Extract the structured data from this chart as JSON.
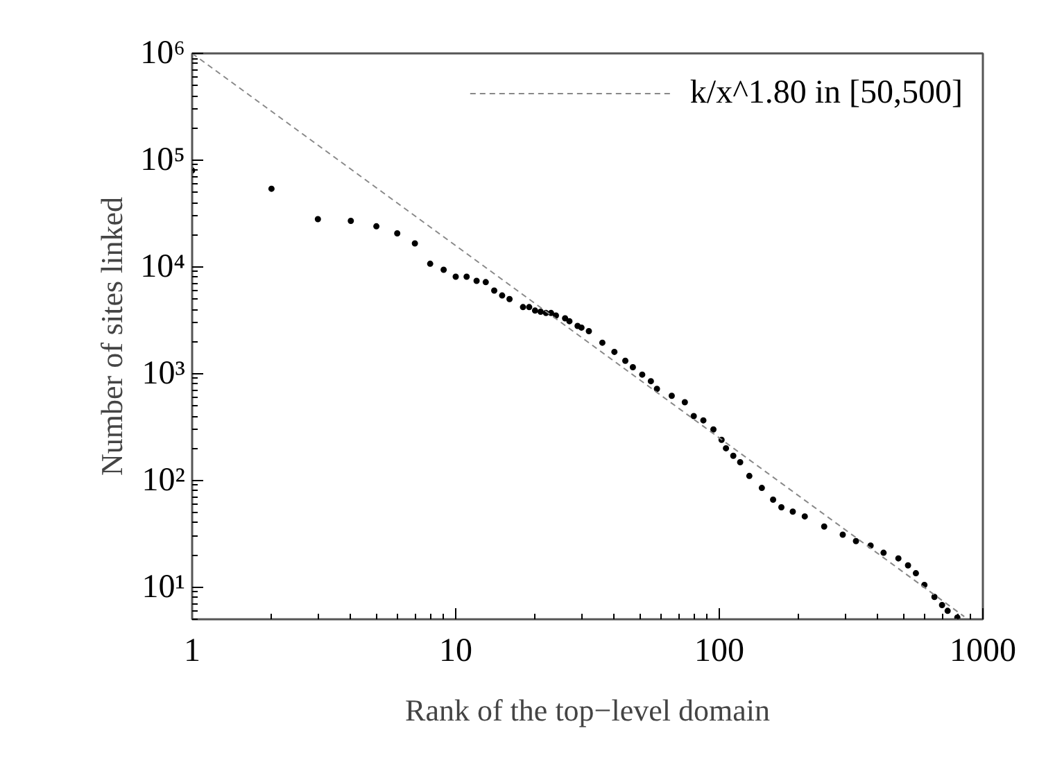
{
  "chart_data": {
    "type": "scatter",
    "xlabel": "Rank of the top−level domain",
    "ylabel": "Number of sites linked",
    "log": "xy",
    "grid": false,
    "legend": "top right",
    "xlim": [
      1,
      1000
    ],
    "ylim": [
      5,
      1000000
    ],
    "xticks": [
      1,
      10,
      100,
      1000
    ],
    "yticks": [
      {
        "value": 10,
        "label": "10¹"
      },
      {
        "value": 100,
        "label": "10²"
      },
      {
        "value": 1000,
        "label": "10³"
      },
      {
        "value": 10000,
        "label": "10⁴"
      },
      {
        "value": 100000,
        "label": "10⁵"
      },
      {
        "value": 1000000,
        "label": "10⁶"
      }
    ],
    "series": [
      {
        "color": "#000000",
        "marker": "circle",
        "x": [
          1,
          2,
          3,
          4,
          5,
          6,
          7,
          8,
          9,
          10,
          11,
          12,
          13,
          14,
          15,
          16,
          18,
          19,
          20,
          21,
          22,
          23,
          24,
          26,
          27,
          29,
          30,
          32,
          36,
          40,
          44,
          47,
          51,
          55,
          58,
          66,
          74,
          80,
          87,
          95,
          102,
          106,
          113,
          120,
          130,
          145,
          160,
          172,
          190,
          211,
          250,
          294,
          330,
          375,
          420,
          478,
          520,
          557,
          600,
          655,
          700,
          735,
          800
        ],
        "values": [
          80000,
          54000,
          28000,
          27000,
          24000,
          20600,
          16600,
          10700,
          9400,
          8100,
          8100,
          7400,
          7200,
          6000,
          5400,
          5000,
          4200,
          4200,
          3900,
          3800,
          3700,
          3700,
          3500,
          3300,
          3100,
          2800,
          2700,
          2500,
          1950,
          1600,
          1320,
          1150,
          980,
          850,
          720,
          620,
          540,
          400,
          365,
          300,
          240,
          200,
          170,
          148,
          110,
          85,
          66,
          56,
          51,
          46,
          37,
          31,
          27,
          24.5,
          21,
          18.6,
          16,
          13.5,
          10.5,
          8.1,
          6.8,
          6.0,
          5.2
        ]
      },
      {
        "name": "k/x^1.80 in [50,500]",
        "type": "line",
        "line_style": "dashed",
        "color": "#888888",
        "x": [
          1,
          850
        ],
        "values": [
          1000000,
          5.3
        ]
      }
    ]
  }
}
